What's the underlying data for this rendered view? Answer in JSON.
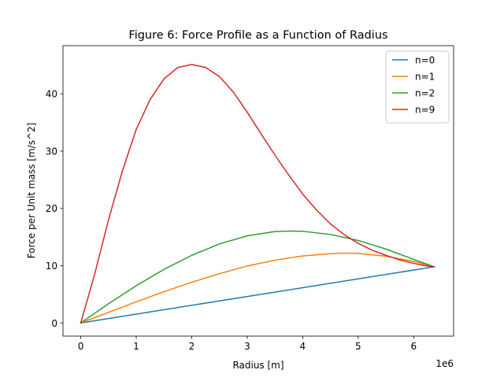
{
  "chart_data": {
    "type": "line",
    "title": "Figure 6: Force Profile as a Function of Radius",
    "xlabel": "Radius [m]",
    "ylabel": "Force per Unit mass [m/s^2]",
    "x_offset_label": "1e6",
    "xlim": [
      -0.32,
      6.72
    ],
    "ylim": [
      -2.3,
      48.4
    ],
    "x_ticks": [
      0,
      1,
      2,
      3,
      4,
      5,
      6
    ],
    "x_tick_labels": [
      "0",
      "1",
      "2",
      "3",
      "4",
      "5",
      "6"
    ],
    "y_ticks": [
      0,
      10,
      20,
      30,
      40
    ],
    "y_tick_labels": [
      "0",
      "10",
      "20",
      "30",
      "40"
    ],
    "grid": false,
    "legend_position": "top-right",
    "series": [
      {
        "name": "n=0",
        "color": "#1f77b4",
        "x": [
          0,
          6.37
        ],
        "y": [
          0,
          9.8
        ]
      },
      {
        "name": "n=1",
        "color": "#ff7f0e",
        "x": [
          0,
          0.5,
          1,
          1.5,
          2,
          2.5,
          3,
          3.5,
          4,
          4.5,
          4.78,
          5,
          5.5,
          6,
          6.37
        ],
        "y": [
          0,
          1.85,
          3.68,
          5.45,
          7.1,
          8.6,
          9.95,
          10.95,
          11.7,
          12.1,
          12.2,
          12.15,
          11.65,
          10.75,
          9.8
        ]
      },
      {
        "name": "n=2",
        "color": "#2ca02c",
        "x": [
          0,
          0.5,
          1,
          1.5,
          2,
          2.5,
          3,
          3.5,
          3.78,
          4,
          4.5,
          5,
          5.5,
          6,
          6.37
        ],
        "y": [
          0,
          3.35,
          6.5,
          9.35,
          11.8,
          13.8,
          15.2,
          15.95,
          16.05,
          16.0,
          15.45,
          14.4,
          12.9,
          11.1,
          9.8
        ]
      },
      {
        "name": "n=9",
        "color": "#d62728",
        "x": [
          0,
          0.25,
          0.5,
          0.75,
          1,
          1.25,
          1.5,
          1.75,
          2,
          2.25,
          2.5,
          2.75,
          3,
          3.25,
          3.5,
          3.75,
          4,
          4.25,
          4.5,
          4.75,
          5,
          5.25,
          5.5,
          5.75,
          6,
          6.2,
          6.37
        ],
        "y": [
          0,
          8.5,
          18.0,
          26.5,
          33.8,
          39.0,
          42.6,
          44.6,
          45.1,
          44.6,
          43.0,
          40.3,
          36.8,
          33.0,
          29.3,
          25.8,
          22.5,
          19.7,
          17.3,
          15.4,
          13.9,
          12.7,
          11.8,
          11.0,
          10.4,
          10.0,
          9.8
        ]
      }
    ]
  }
}
